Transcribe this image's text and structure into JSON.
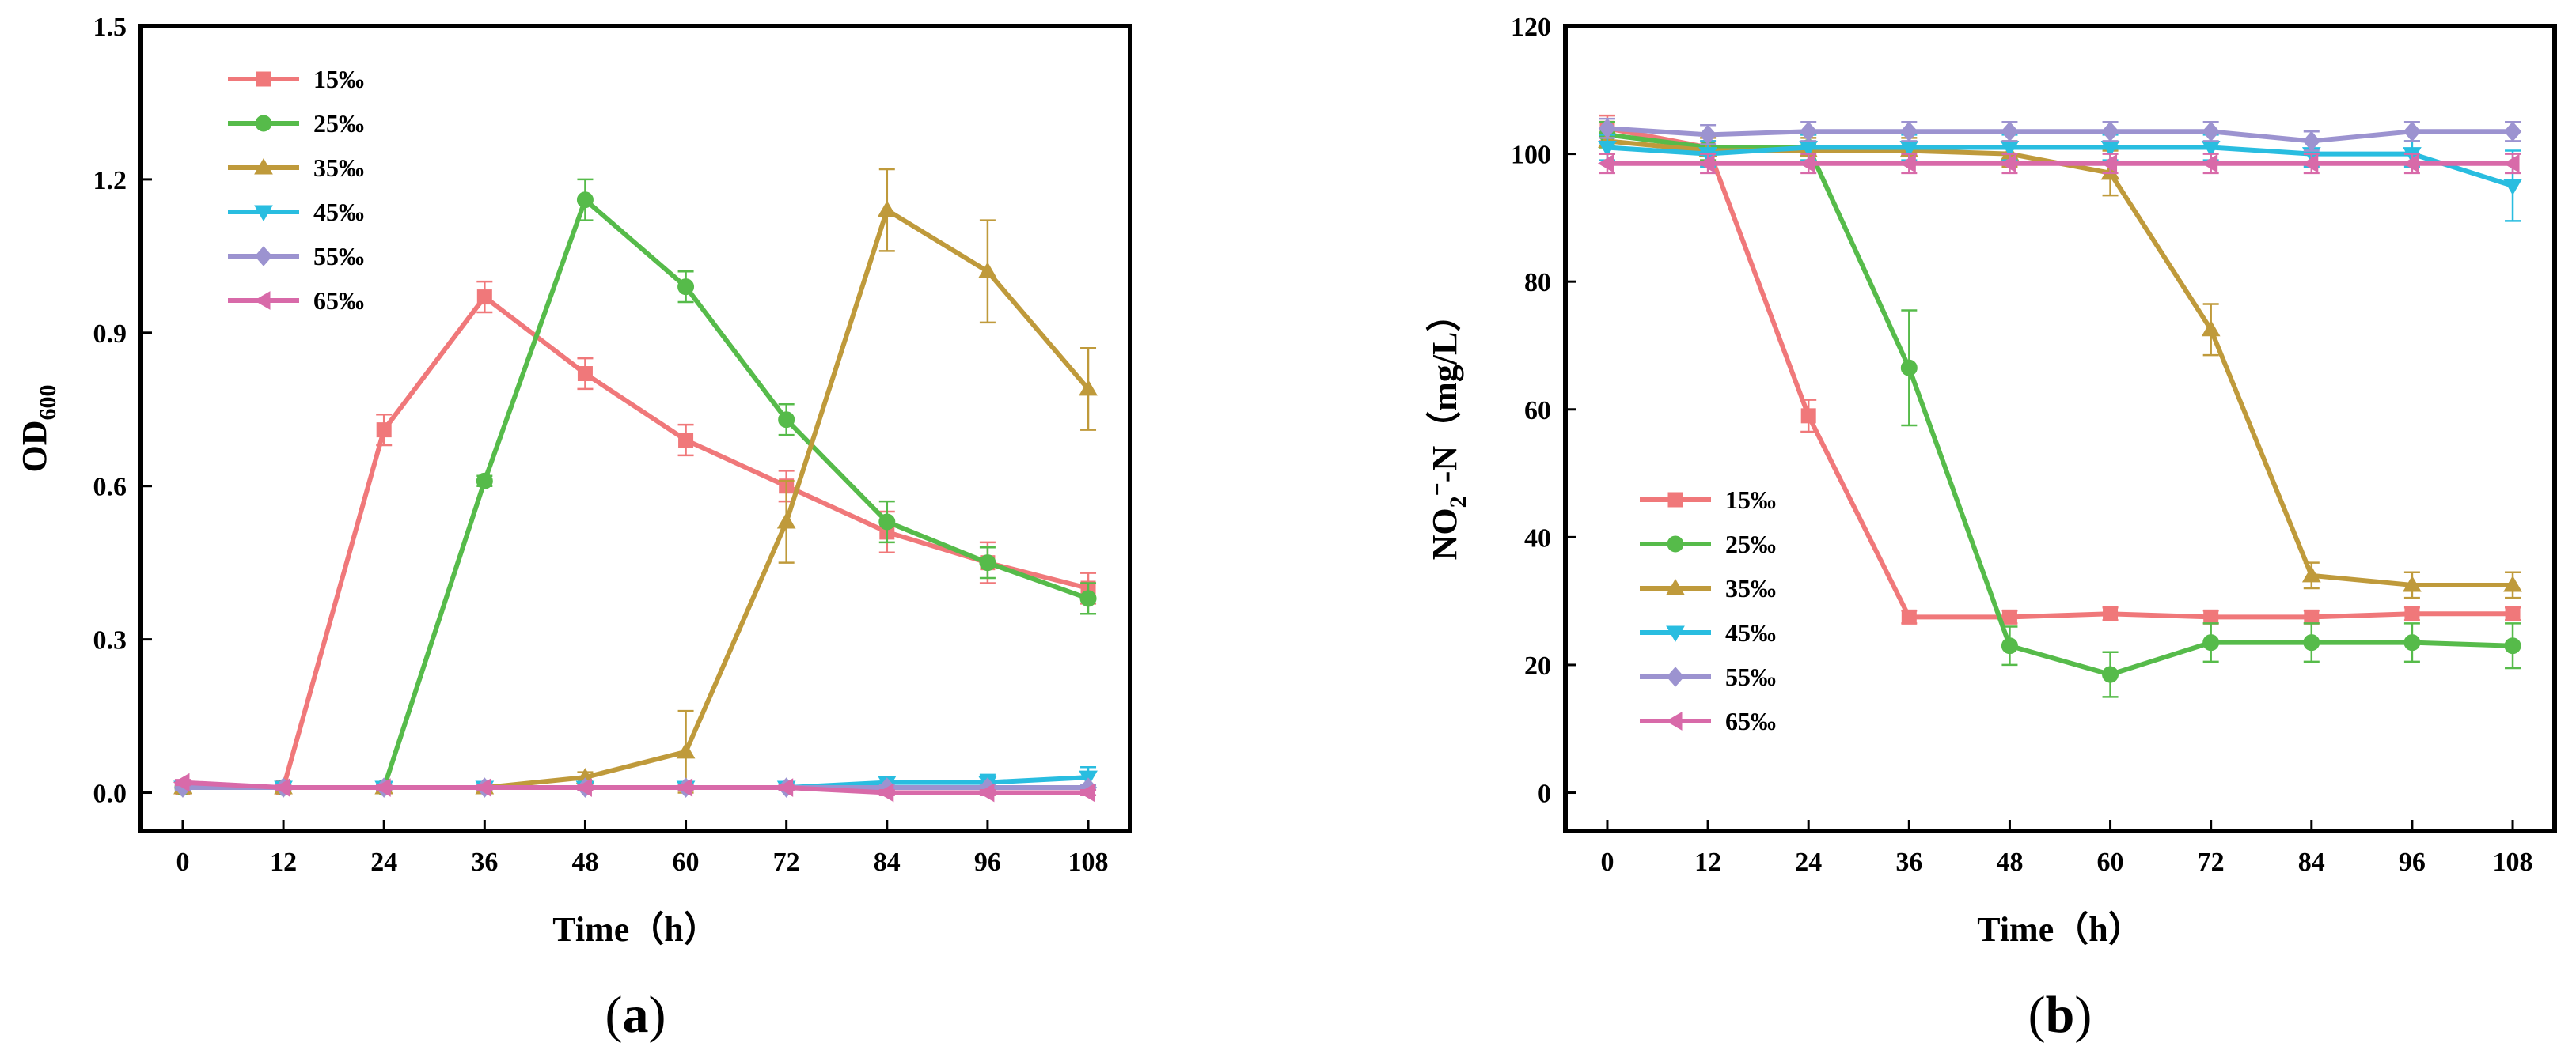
{
  "colors": {
    "15‰": "#F0787A",
    "25‰": "#56BB4A",
    "35‰": "#BF9A3B",
    "45‰": "#29BDE0",
    "55‰": "#9C93D0",
    "65‰": "#D86AA9"
  },
  "chart_data": [
    {
      "type": "line",
      "panel_label": "(a)",
      "panel_letter": "a",
      "xlabel": "Time（h）",
      "ylabel_main": "OD",
      "ylabel_sub": "600",
      "xlim": [
        -5,
        113
      ],
      "ylim": [
        -0.075,
        1.5
      ],
      "xticks": [
        0,
        12,
        24,
        36,
        48,
        60,
        72,
        84,
        96,
        108
      ],
      "yticks": [
        0.0,
        0.3,
        0.6,
        0.9,
        1.2,
        1.5
      ],
      "ytick_labels": [
        "0.0",
        "0.3",
        "0.6",
        "0.9",
        "1.2",
        "1.5"
      ],
      "x": [
        0,
        12,
        24,
        36,
        48,
        60,
        72,
        84,
        96,
        108
      ],
      "legend_position": "top-left",
      "series": [
        {
          "name": "15‰",
          "marker": "square",
          "values": [
            0.01,
            0.01,
            0.71,
            0.97,
            0.82,
            0.69,
            0.6,
            0.51,
            0.45,
            0.4
          ],
          "errors": [
            0.005,
            0.005,
            0.03,
            0.03,
            0.03,
            0.03,
            0.03,
            0.04,
            0.04,
            0.03
          ]
        },
        {
          "name": "25‰",
          "marker": "circle",
          "values": [
            0.01,
            0.01,
            0.01,
            0.61,
            1.16,
            0.99,
            0.73,
            0.53,
            0.45,
            0.38
          ],
          "errors": [
            0.005,
            0.005,
            0.005,
            0.01,
            0.04,
            0.03,
            0.03,
            0.04,
            0.03,
            0.03
          ]
        },
        {
          "name": "35‰",
          "marker": "triangle-up",
          "values": [
            0.01,
            0.01,
            0.01,
            0.01,
            0.03,
            0.08,
            0.53,
            1.14,
            1.02,
            0.79
          ],
          "errors": [
            0.005,
            0.005,
            0.005,
            0.005,
            0.01,
            0.08,
            0.08,
            0.08,
            0.1,
            0.08
          ]
        },
        {
          "name": "45‰",
          "marker": "triangle-down",
          "values": [
            0.01,
            0.01,
            0.01,
            0.01,
            0.01,
            0.01,
            0.01,
            0.02,
            0.02,
            0.03
          ],
          "errors": [
            0.005,
            0.005,
            0.005,
            0.005,
            0.005,
            0.005,
            0.005,
            0.01,
            0.015,
            0.02
          ]
        },
        {
          "name": "55‰",
          "marker": "diamond",
          "values": [
            0.01,
            0.01,
            0.01,
            0.01,
            0.01,
            0.01,
            0.01,
            0.01,
            0.01,
            0.01
          ],
          "errors": [
            0.005,
            0.005,
            0.005,
            0.005,
            0.005,
            0.005,
            0.005,
            0.005,
            0.005,
            0.005
          ]
        },
        {
          "name": "65‰",
          "marker": "triangle-left",
          "values": [
            0.02,
            0.01,
            0.01,
            0.01,
            0.01,
            0.01,
            0.01,
            0.0,
            0.0,
            0.0
          ],
          "errors": [
            0.005,
            0.005,
            0.005,
            0.005,
            0.005,
            0.005,
            0.005,
            0.005,
            0.005,
            0.005
          ]
        }
      ]
    },
    {
      "type": "line",
      "panel_label": "(b)",
      "panel_letter": "b",
      "xlabel": "Time（h）",
      "ylabel_main": "NO",
      "ylabel_sub": "2",
      "ylabel_sup": "−",
      "ylabel_rest": "-N（mg/L）",
      "xlim": [
        -5,
        113
      ],
      "ylim": [
        -6,
        120
      ],
      "xticks": [
        0,
        12,
        24,
        36,
        48,
        60,
        72,
        84,
        96,
        108
      ],
      "yticks": [
        0,
        20,
        40,
        60,
        80,
        100,
        120
      ],
      "ytick_labels": [
        "0",
        "20",
        "40",
        "60",
        "80",
        "100",
        "120"
      ],
      "x": [
        0,
        12,
        24,
        36,
        48,
        60,
        72,
        84,
        96,
        108
      ],
      "legend_position": "center-left",
      "series": [
        {
          "name": "15‰",
          "marker": "square",
          "values": [
            104,
            101,
            59,
            27.5,
            27.5,
            28,
            27.5,
            27.5,
            28,
            28
          ],
          "errors": [
            2,
            2,
            2.5,
            1,
            1,
            1,
            1,
            1,
            1,
            1
          ]
        },
        {
          "name": "25‰",
          "marker": "circle",
          "values": [
            103,
            101,
            101,
            66.5,
            23,
            18.5,
            23.5,
            23.5,
            23.5,
            23
          ],
          "errors": [
            2,
            2,
            2,
            9,
            3,
            3.5,
            3,
            3,
            3,
            3.5
          ]
        },
        {
          "name": "35‰",
          "marker": "triangle-up",
          "values": [
            102,
            100.5,
            100.5,
            100.5,
            100,
            97,
            72.5,
            34,
            32.5,
            32.5
          ],
          "errors": [
            2,
            2,
            2,
            2,
            2,
            3.5,
            4,
            2,
            2,
            2
          ]
        },
        {
          "name": "45‰",
          "marker": "triangle-down",
          "values": [
            101,
            100,
            101,
            101,
            101,
            101,
            101,
            100,
            100,
            95
          ],
          "errors": [
            2,
            2,
            2,
            2,
            2,
            2,
            2,
            2,
            2,
            5.5
          ]
        },
        {
          "name": "55‰",
          "marker": "diamond",
          "values": [
            104,
            103,
            103.5,
            103.5,
            103.5,
            103.5,
            103.5,
            102,
            103.5,
            103.5
          ],
          "errors": [
            1.5,
            1.5,
            1.5,
            1.5,
            1.5,
            1.5,
            1.5,
            1.5,
            1.5,
            1.5
          ]
        },
        {
          "name": "65‰",
          "marker": "triangle-left",
          "values": [
            98.5,
            98.5,
            98.5,
            98.5,
            98.5,
            98.5,
            98.5,
            98.5,
            98.5,
            98.5
          ],
          "errors": [
            1.5,
            1.5,
            1.5,
            1.5,
            1.5,
            1.5,
            1.5,
            1.5,
            1.5,
            1.5
          ]
        }
      ]
    }
  ]
}
